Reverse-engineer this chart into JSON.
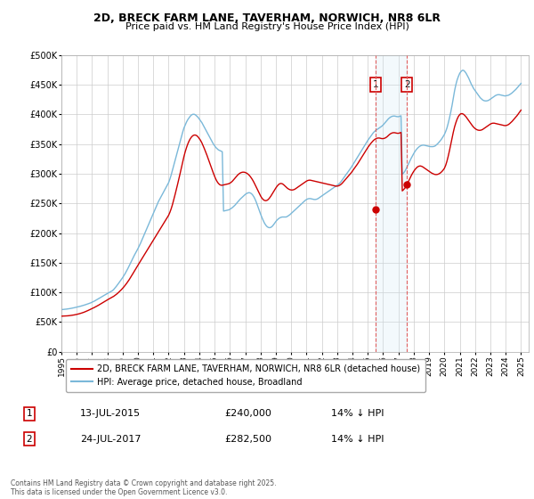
{
  "title": "2D, BRECK FARM LANE, TAVERHAM, NORWICH, NR8 6LR",
  "subtitle": "Price paid vs. HM Land Registry's House Price Index (HPI)",
  "ylabel_ticks": [
    "£0",
    "£50K",
    "£100K",
    "£150K",
    "£200K",
    "£250K",
    "£300K",
    "£350K",
    "£400K",
    "£450K",
    "£500K"
  ],
  "ylim": [
    0,
    500000
  ],
  "xlim_start": 1995.0,
  "xlim_end": 2025.5,
  "sale1_date": 2015.53,
  "sale1_price": 240000,
  "sale2_date": 2017.56,
  "sale2_price": 282500,
  "hpi_color": "#7ab8d9",
  "price_color": "#cc0000",
  "vline_color": "#e06060",
  "span_color": "#d0e8f5",
  "grid_color": "#cccccc",
  "bg_color": "#ffffff",
  "legend_label1": "2D, BRECK FARM LANE, TAVERHAM, NORWICH, NR8 6LR (detached house)",
  "legend_label2": "HPI: Average price, detached house, Broadland",
  "table_row1": [
    "1",
    "13-JUL-2015",
    "£240,000",
    "14% ↓ HPI"
  ],
  "table_row2": [
    "2",
    "24-JUL-2017",
    "£282,500",
    "14% ↓ HPI"
  ],
  "footnote": "Contains HM Land Registry data © Crown copyright and database right 2025.\nThis data is licensed under the Open Government Licence v3.0.",
  "hpi_years": [
    1995.0,
    1995.083,
    1995.167,
    1995.25,
    1995.333,
    1995.417,
    1995.5,
    1995.583,
    1995.667,
    1995.75,
    1995.833,
    1995.917,
    1996.0,
    1996.083,
    1996.167,
    1996.25,
    1996.333,
    1996.417,
    1996.5,
    1996.583,
    1996.667,
    1996.75,
    1996.833,
    1996.917,
    1997.0,
    1997.083,
    1997.167,
    1997.25,
    1997.333,
    1997.417,
    1997.5,
    1997.583,
    1997.667,
    1997.75,
    1997.833,
    1997.917,
    1998.0,
    1998.083,
    1998.167,
    1998.25,
    1998.333,
    1998.417,
    1998.5,
    1998.583,
    1998.667,
    1998.75,
    1998.833,
    1998.917,
    1999.0,
    1999.083,
    1999.167,
    1999.25,
    1999.333,
    1999.417,
    1999.5,
    1999.583,
    1999.667,
    1999.75,
    1999.833,
    1999.917,
    2000.0,
    2000.083,
    2000.167,
    2000.25,
    2000.333,
    2000.417,
    2000.5,
    2000.583,
    2000.667,
    2000.75,
    2000.833,
    2000.917,
    2001.0,
    2001.083,
    2001.167,
    2001.25,
    2001.333,
    2001.417,
    2001.5,
    2001.583,
    2001.667,
    2001.75,
    2001.833,
    2001.917,
    2002.0,
    2002.083,
    2002.167,
    2002.25,
    2002.333,
    2002.417,
    2002.5,
    2002.583,
    2002.667,
    2002.75,
    2002.833,
    2002.917,
    2003.0,
    2003.083,
    2003.167,
    2003.25,
    2003.333,
    2003.417,
    2003.5,
    2003.583,
    2003.667,
    2003.75,
    2003.833,
    2003.917,
    2004.0,
    2004.083,
    2004.167,
    2004.25,
    2004.333,
    2004.417,
    2004.5,
    2004.583,
    2004.667,
    2004.75,
    2004.833,
    2004.917,
    2005.0,
    2005.083,
    2005.167,
    2005.25,
    2005.333,
    2005.417,
    2005.5,
    2005.583,
    2005.667,
    2005.75,
    2005.833,
    2005.917,
    2006.0,
    2006.083,
    2006.167,
    2006.25,
    2006.333,
    2006.417,
    2006.5,
    2006.583,
    2006.667,
    2006.75,
    2006.833,
    2006.917,
    2007.0,
    2007.083,
    2007.167,
    2007.25,
    2007.333,
    2007.417,
    2007.5,
    2007.583,
    2007.667,
    2007.75,
    2007.833,
    2007.917,
    2008.0,
    2008.083,
    2008.167,
    2008.25,
    2008.333,
    2008.417,
    2008.5,
    2008.583,
    2008.667,
    2008.75,
    2008.833,
    2008.917,
    2009.0,
    2009.083,
    2009.167,
    2009.25,
    2009.333,
    2009.417,
    2009.5,
    2009.583,
    2009.667,
    2009.75,
    2009.833,
    2009.917,
    2010.0,
    2010.083,
    2010.167,
    2010.25,
    2010.333,
    2010.417,
    2010.5,
    2010.583,
    2010.667,
    2010.75,
    2010.833,
    2010.917,
    2011.0,
    2011.083,
    2011.167,
    2011.25,
    2011.333,
    2011.417,
    2011.5,
    2011.583,
    2011.667,
    2011.75,
    2011.833,
    2011.917,
    2012.0,
    2012.083,
    2012.167,
    2012.25,
    2012.333,
    2012.417,
    2012.5,
    2012.583,
    2012.667,
    2012.75,
    2012.833,
    2012.917,
    2013.0,
    2013.083,
    2013.167,
    2013.25,
    2013.333,
    2013.417,
    2013.5,
    2013.583,
    2013.667,
    2013.75,
    2013.833,
    2013.917,
    2014.0,
    2014.083,
    2014.167,
    2014.25,
    2014.333,
    2014.417,
    2014.5,
    2014.583,
    2014.667,
    2014.75,
    2014.833,
    2014.917,
    2015.0,
    2015.083,
    2015.167,
    2015.25,
    2015.333,
    2015.417,
    2015.5,
    2015.583,
    2015.667,
    2015.75,
    2015.833,
    2015.917,
    2016.0,
    2016.083,
    2016.167,
    2016.25,
    2016.333,
    2016.417,
    2016.5,
    2016.583,
    2016.667,
    2016.75,
    2016.833,
    2016.917,
    2017.0,
    2017.083,
    2017.167,
    2017.25,
    2017.333,
    2017.417,
    2017.5,
    2017.583,
    2017.667,
    2017.75,
    2017.833,
    2017.917,
    2018.0,
    2018.083,
    2018.167,
    2018.25,
    2018.333,
    2018.417,
    2018.5,
    2018.583,
    2018.667,
    2018.75,
    2018.833,
    2018.917,
    2019.0,
    2019.083,
    2019.167,
    2019.25,
    2019.333,
    2019.417,
    2019.5,
    2019.583,
    2019.667,
    2019.75,
    2019.833,
    2019.917,
    2020.0,
    2020.083,
    2020.167,
    2020.25,
    2020.333,
    2020.417,
    2020.5,
    2020.583,
    2020.667,
    2020.75,
    2020.833,
    2020.917,
    2021.0,
    2021.083,
    2021.167,
    2021.25,
    2021.333,
    2021.417,
    2021.5,
    2021.583,
    2021.667,
    2021.75,
    2021.833,
    2021.917,
    2022.0,
    2022.083,
    2022.167,
    2022.25,
    2022.333,
    2022.417,
    2022.5,
    2022.583,
    2022.667,
    2022.75,
    2022.833,
    2022.917,
    2023.0,
    2023.083,
    2023.167,
    2023.25,
    2023.333,
    2023.417,
    2023.5,
    2023.583,
    2023.667,
    2023.75,
    2023.833,
    2023.917,
    2024.0,
    2024.083,
    2024.167,
    2024.25,
    2024.333,
    2024.417,
    2024.5,
    2024.583,
    2024.667,
    2024.75,
    2024.833,
    2024.917,
    2025.0
  ],
  "hpi_values": [
    71000,
    71200,
    71400,
    71600,
    71900,
    72200,
    72500,
    72900,
    73300,
    73700,
    74200,
    74700,
    75200,
    75700,
    76200,
    76800,
    77400,
    78000,
    78700,
    79400,
    80100,
    80900,
    81700,
    82500,
    83500,
    84500,
    85600,
    86800,
    88000,
    89300,
    90600,
    91900,
    93200,
    94500,
    95700,
    96900,
    98000,
    99200,
    100400,
    101600,
    103000,
    105000,
    107500,
    110200,
    113000,
    116000,
    119000,
    122000,
    125000,
    128500,
    132000,
    136000,
    140000,
    144500,
    149000,
    153500,
    158000,
    162000,
    166000,
    170000,
    174000,
    178500,
    183000,
    188000,
    193000,
    198000,
    203000,
    208000,
    213000,
    218000,
    223000,
    228000,
    233000,
    238000,
    243000,
    248000,
    253000,
    257000,
    261000,
    265000,
    269000,
    273000,
    277000,
    281000,
    285000,
    291000,
    298000,
    306000,
    314000,
    322000,
    330000,
    338000,
    346000,
    354000,
    362000,
    370000,
    377000,
    382000,
    387000,
    391000,
    394000,
    397000,
    399000,
    400000,
    400000,
    399000,
    397000,
    395000,
    392000,
    389000,
    386000,
    382000,
    378000,
    374000,
    370000,
    366000,
    362000,
    358000,
    354000,
    350000,
    347000,
    344000,
    342000,
    340000,
    339000,
    338000,
    337000,
    237000,
    237500,
    238000,
    238500,
    239000,
    240000,
    241500,
    243000,
    245000,
    247000,
    249500,
    252000,
    254500,
    257000,
    259000,
    261000,
    263000,
    265000,
    266500,
    267500,
    268000,
    267500,
    266000,
    263500,
    260000,
    255500,
    250000,
    244000,
    238000,
    232000,
    226500,
    221500,
    217000,
    213500,
    211000,
    209500,
    209000,
    209500,
    211000,
    213500,
    216500,
    219500,
    222000,
    224000,
    225500,
    226500,
    227000,
    227000,
    227000,
    227000,
    228000,
    229500,
    231000,
    233000,
    235000,
    237000,
    239000,
    241000,
    243000,
    245000,
    247000,
    249000,
    251000,
    253000,
    255000,
    256500,
    257500,
    258000,
    258000,
    257500,
    257000,
    256500,
    256500,
    257000,
    258000,
    259500,
    261000,
    262500,
    264000,
    265500,
    267000,
    268500,
    270000,
    271500,
    273000,
    274500,
    276000,
    277500,
    279000,
    280500,
    282000,
    284000,
    286500,
    289500,
    292500,
    295500,
    298500,
    301500,
    304500,
    307500,
    310500,
    314000,
    317500,
    321000,
    324500,
    328000,
    331500,
    335000,
    338500,
    342000,
    345500,
    349000,
    352500,
    356000,
    359000,
    362000,
    365000,
    368000,
    370500,
    372500,
    374000,
    375500,
    377000,
    378500,
    380000,
    382000,
    384500,
    387000,
    389500,
    392000,
    394000,
    395500,
    396500,
    397000,
    397000,
    396500,
    396000,
    396000,
    396500,
    397500,
    299000,
    301000,
    304000,
    308000,
    312500,
    317000,
    321500,
    326000,
    330000,
    334000,
    337500,
    340500,
    343000,
    345000,
    346500,
    347500,
    348000,
    348000,
    347500,
    347000,
    346500,
    346000,
    345500,
    345500,
    345500,
    346000,
    347000,
    349000,
    351000,
    353500,
    356000,
    359000,
    362500,
    366000,
    371000,
    377000,
    385000,
    394000,
    404000,
    415000,
    427000,
    440000,
    450000,
    458000,
    464000,
    469000,
    472000,
    474000,
    474000,
    472000,
    469000,
    465000,
    461000,
    456000,
    451000,
    447000,
    443000,
    440000,
    437000,
    434000,
    431000,
    428000,
    426000,
    424000,
    423000,
    422500,
    422500,
    423000,
    424000,
    425500,
    427000,
    428500,
    430000,
    431500,
    432500,
    433000,
    433000,
    432500,
    432000,
    431500,
    431000,
    431000,
    431500,
    432000,
    433000,
    434500,
    436000,
    438000,
    440000,
    442000,
    444500,
    447000,
    449500,
    452000
  ],
  "price_years": [
    1995.0,
    1995.083,
    1995.167,
    1995.25,
    1995.333,
    1995.417,
    1995.5,
    1995.583,
    1995.667,
    1995.75,
    1995.833,
    1995.917,
    1996.0,
    1996.083,
    1996.167,
    1996.25,
    1996.333,
    1996.417,
    1996.5,
    1996.583,
    1996.667,
    1996.75,
    1996.833,
    1996.917,
    1997.0,
    1997.083,
    1997.167,
    1997.25,
    1997.333,
    1997.417,
    1997.5,
    1997.583,
    1997.667,
    1997.75,
    1997.833,
    1997.917,
    1998.0,
    1998.083,
    1998.167,
    1998.25,
    1998.333,
    1998.417,
    1998.5,
    1998.583,
    1998.667,
    1998.75,
    1998.833,
    1998.917,
    1999.0,
    1999.083,
    1999.167,
    1999.25,
    1999.333,
    1999.417,
    1999.5,
    1999.583,
    1999.667,
    1999.75,
    1999.833,
    1999.917,
    2000.0,
    2000.083,
    2000.167,
    2000.25,
    2000.333,
    2000.417,
    2000.5,
    2000.583,
    2000.667,
    2000.75,
    2000.833,
    2000.917,
    2001.0,
    2001.083,
    2001.167,
    2001.25,
    2001.333,
    2001.417,
    2001.5,
    2001.583,
    2001.667,
    2001.75,
    2001.833,
    2001.917,
    2002.0,
    2002.083,
    2002.167,
    2002.25,
    2002.333,
    2002.417,
    2002.5,
    2002.583,
    2002.667,
    2002.75,
    2002.833,
    2002.917,
    2003.0,
    2003.083,
    2003.167,
    2003.25,
    2003.333,
    2003.417,
    2003.5,
    2003.583,
    2003.667,
    2003.75,
    2003.833,
    2003.917,
    2004.0,
    2004.083,
    2004.167,
    2004.25,
    2004.333,
    2004.417,
    2004.5,
    2004.583,
    2004.667,
    2004.75,
    2004.833,
    2004.917,
    2005.0,
    2005.083,
    2005.167,
    2005.25,
    2005.333,
    2005.417,
    2005.5,
    2005.583,
    2005.667,
    2005.75,
    2005.833,
    2005.917,
    2006.0,
    2006.083,
    2006.167,
    2006.25,
    2006.333,
    2006.417,
    2006.5,
    2006.583,
    2006.667,
    2006.75,
    2006.833,
    2006.917,
    2007.0,
    2007.083,
    2007.167,
    2007.25,
    2007.333,
    2007.417,
    2007.5,
    2007.583,
    2007.667,
    2007.75,
    2007.833,
    2007.917,
    2008.0,
    2008.083,
    2008.167,
    2008.25,
    2008.333,
    2008.417,
    2008.5,
    2008.583,
    2008.667,
    2008.75,
    2008.833,
    2008.917,
    2009.0,
    2009.083,
    2009.167,
    2009.25,
    2009.333,
    2009.417,
    2009.5,
    2009.583,
    2009.667,
    2009.75,
    2009.833,
    2009.917,
    2010.0,
    2010.083,
    2010.167,
    2010.25,
    2010.333,
    2010.417,
    2010.5,
    2010.583,
    2010.667,
    2010.75,
    2010.833,
    2010.917,
    2011.0,
    2011.083,
    2011.167,
    2011.25,
    2011.333,
    2011.417,
    2011.5,
    2011.583,
    2011.667,
    2011.75,
    2011.833,
    2011.917,
    2012.0,
    2012.083,
    2012.167,
    2012.25,
    2012.333,
    2012.417,
    2012.5,
    2012.583,
    2012.667,
    2012.75,
    2012.833,
    2012.917,
    2013.0,
    2013.083,
    2013.167,
    2013.25,
    2013.333,
    2013.417,
    2013.5,
    2013.583,
    2013.667,
    2013.75,
    2013.833,
    2013.917,
    2014.0,
    2014.083,
    2014.167,
    2014.25,
    2014.333,
    2014.417,
    2014.5,
    2014.583,
    2014.667,
    2014.75,
    2014.833,
    2014.917,
    2015.0,
    2015.083,
    2015.167,
    2015.25,
    2015.333,
    2015.417,
    2015.5,
    2015.583,
    2015.667,
    2015.75,
    2015.833,
    2015.917,
    2016.0,
    2016.083,
    2016.167,
    2016.25,
    2016.333,
    2016.417,
    2016.5,
    2016.583,
    2016.667,
    2016.75,
    2016.833,
    2016.917,
    2017.0,
    2017.083,
    2017.167,
    2017.25,
    2017.333,
    2017.417,
    2017.5,
    2017.583,
    2017.667,
    2017.75,
    2017.833,
    2017.917,
    2018.0,
    2018.083,
    2018.167,
    2018.25,
    2018.333,
    2018.417,
    2018.5,
    2018.583,
    2018.667,
    2018.75,
    2018.833,
    2018.917,
    2019.0,
    2019.083,
    2019.167,
    2019.25,
    2019.333,
    2019.417,
    2019.5,
    2019.583,
    2019.667,
    2019.75,
    2019.833,
    2019.917,
    2020.0,
    2020.083,
    2020.167,
    2020.25,
    2020.333,
    2020.417,
    2020.5,
    2020.583,
    2020.667,
    2020.75,
    2020.833,
    2020.917,
    2021.0,
    2021.083,
    2021.167,
    2021.25,
    2021.333,
    2021.417,
    2021.5,
    2021.583,
    2021.667,
    2021.75,
    2021.833,
    2021.917,
    2022.0,
    2022.083,
    2022.167,
    2022.25,
    2022.333,
    2022.417,
    2022.5,
    2022.583,
    2022.667,
    2022.75,
    2022.833,
    2022.917,
    2023.0,
    2023.083,
    2023.167,
    2023.25,
    2023.333,
    2023.417,
    2023.5,
    2023.583,
    2023.667,
    2023.75,
    2023.833,
    2023.917,
    2024.0,
    2024.083,
    2024.167,
    2024.25,
    2024.333,
    2024.417,
    2024.5,
    2024.583,
    2024.667,
    2024.75,
    2024.833,
    2024.917,
    2025.0
  ],
  "price_values": [
    60000,
    60100,
    60200,
    60300,
    60400,
    60600,
    60800,
    61100,
    61400,
    61700,
    62100,
    62500,
    63000,
    63500,
    64100,
    64700,
    65400,
    66100,
    66900,
    67800,
    68700,
    69700,
    70700,
    71700,
    72700,
    73800,
    74900,
    76000,
    77200,
    78400,
    79700,
    81000,
    82300,
    83600,
    84900,
    86200,
    87500,
    88700,
    89900,
    91000,
    92200,
    93500,
    95000,
    96700,
    98500,
    100500,
    102600,
    104700,
    107000,
    109500,
    112200,
    115000,
    118000,
    121200,
    124600,
    128100,
    131700,
    135300,
    138900,
    142500,
    146000,
    149500,
    153000,
    156500,
    160000,
    163500,
    167000,
    170500,
    174000,
    177500,
    181000,
    184500,
    188000,
    191500,
    195000,
    198500,
    202000,
    205500,
    209000,
    212500,
    216000,
    219500,
    223000,
    226500,
    230000,
    235000,
    241000,
    248000,
    256000,
    264500,
    273000,
    282000,
    291000,
    300500,
    310000,
    319500,
    329000,
    337000,
    344000,
    350000,
    355000,
    359000,
    362000,
    364000,
    365000,
    365000,
    364000,
    362000,
    359000,
    356000,
    352000,
    347000,
    342000,
    336500,
    331000,
    325000,
    319000,
    313000,
    307000,
    301000,
    295500,
    290500,
    286500,
    283500,
    281500,
    280500,
    280500,
    281000,
    281500,
    282000,
    282500,
    283000,
    284000,
    285500,
    287500,
    290000,
    292500,
    295000,
    297500,
    299500,
    301000,
    302000,
    302500,
    302500,
    302000,
    301000,
    299500,
    297500,
    295000,
    292000,
    288500,
    284500,
    280000,
    275500,
    271000,
    266500,
    262500,
    259000,
    256500,
    255000,
    254500,
    255000,
    256500,
    259000,
    262000,
    265500,
    269000,
    272500,
    276000,
    279000,
    281500,
    283000,
    283500,
    283000,
    281500,
    279500,
    277500,
    275500,
    274000,
    273000,
    272500,
    272500,
    273000,
    274000,
    275500,
    277000,
    278500,
    280000,
    281500,
    283000,
    284500,
    286000,
    287500,
    288500,
    289000,
    289000,
    288500,
    288000,
    287500,
    287000,
    286500,
    286000,
    285500,
    285000,
    284500,
    284000,
    283500,
    283000,
    282500,
    282000,
    281500,
    281000,
    280500,
    280000,
    279500,
    279000,
    279000,
    279500,
    280500,
    282000,
    284000,
    286500,
    289000,
    291500,
    294000,
    296500,
    299000,
    301500,
    304500,
    307500,
    310500,
    313500,
    316500,
    320000,
    323500,
    327000,
    330500,
    334000,
    337500,
    341000,
    344000,
    347000,
    350000,
    352500,
    355000,
    357000,
    358500,
    359500,
    360000,
    360000,
    359500,
    359000,
    359000,
    359500,
    360500,
    362000,
    364000,
    366000,
    367500,
    368500,
    369000,
    369000,
    368500,
    368000,
    368000,
    368500,
    369500,
    271000,
    273000,
    275500,
    279000,
    283000,
    287500,
    292000,
    296500,
    300500,
    304000,
    307000,
    309500,
    311500,
    312500,
    313000,
    312500,
    311500,
    310000,
    308500,
    307000,
    305500,
    304000,
    302500,
    301000,
    300000,
    299000,
    298500,
    298500,
    299000,
    300000,
    301500,
    303500,
    306000,
    309000,
    314000,
    321000,
    329500,
    339000,
    349500,
    360000,
    370000,
    379000,
    386000,
    392000,
    396500,
    399500,
    401000,
    401000,
    400000,
    398000,
    395500,
    392500,
    389500,
    386500,
    383500,
    380500,
    378000,
    376000,
    374500,
    373500,
    373000,
    373000,
    373500,
    374500,
    376000,
    377500,
    379000,
    380500,
    382000,
    383500,
    384500,
    385000,
    385000,
    384500,
    384000,
    383500,
    383000,
    382500,
    382000,
    381500,
    381000,
    381000,
    381500,
    382500,
    384000,
    386000,
    388000,
    390500,
    393000,
    395500,
    398000,
    401000,
    404000,
    407000
  ]
}
